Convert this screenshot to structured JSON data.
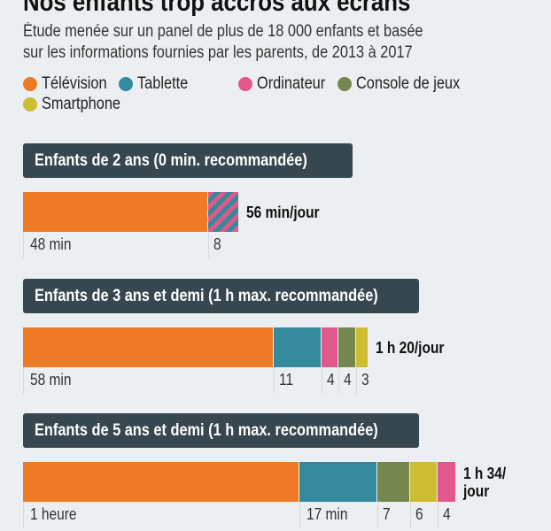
{
  "title": "Nos enfants trop accros aux écrans",
  "subtitle": [
    "Étude menée sur un panel de plus de 18 000 enfants et basée",
    "sur les informations fournies par les parents, de 2013 à 2017"
  ],
  "chart_data": {
    "type": "bar",
    "orientation": "horizontal-stacked",
    "legend": [
      {
        "name": "Télévision",
        "color": "#ee7a26"
      },
      {
        "name": "Tablette",
        "color": "#348a9c"
      },
      {
        "name": "Ordinateur",
        "color": "#e0588c"
      },
      {
        "name": "Console de jeux",
        "color": "#75864f"
      },
      {
        "name": "Smartphone",
        "color": "#cdbd32"
      }
    ],
    "groups": [
      {
        "title": "Enfants de 2 ans (0 min. recommandée)",
        "total": "56 min/jour",
        "segments": [
          {
            "series": "Télévision",
            "value": 48,
            "label": "48 min"
          },
          {
            "series": "Tablette/Ordinateur",
            "value": 8,
            "label": "8",
            "striped": true
          }
        ]
      },
      {
        "title": "Enfants de 3 ans et demi (1 h max. recommandée)",
        "total": "1 h 20/jour",
        "segments": [
          {
            "series": "Télévision",
            "value": 58,
            "label": "58 min"
          },
          {
            "series": "Tablette",
            "value": 11,
            "label": "11"
          },
          {
            "series": "Ordinateur",
            "value": 4,
            "label": "4"
          },
          {
            "series": "Console de jeux",
            "value": 4,
            "label": "4"
          },
          {
            "series": "Smartphone",
            "value": 3,
            "label": "3"
          }
        ]
      },
      {
        "title": "Enfants de 5 ans et demi (1 h max. recommandée)",
        "total": "1 h 34/ jour",
        "segments": [
          {
            "series": "Télévision",
            "value": 60,
            "label": "1 heure"
          },
          {
            "series": "Tablette",
            "value": 17,
            "label": "17 min"
          },
          {
            "series": "Console de jeux",
            "value": 7,
            "label": "7"
          },
          {
            "series": "Smartphone",
            "value": 6,
            "label": "6"
          },
          {
            "series": "Ordinateur",
            "value": 4,
            "label": "4"
          }
        ]
      }
    ],
    "unit": "min"
  }
}
